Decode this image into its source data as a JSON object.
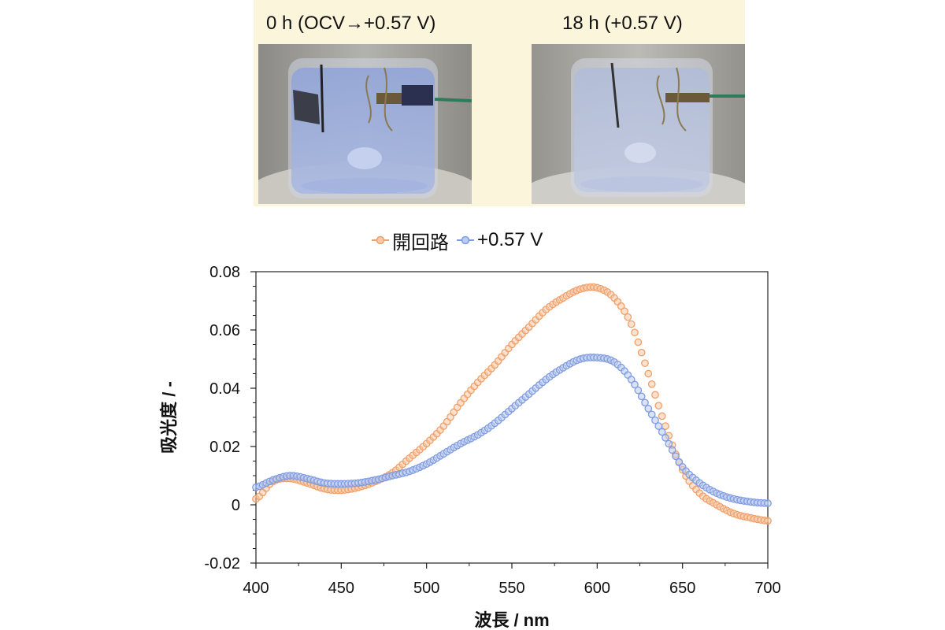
{
  "photos": {
    "left_label": "0 h (OCV→+0.57 V)",
    "right_label": "18 h (+0.57 V)"
  },
  "colors": {
    "orange": "#f0a06a",
    "blue": "#7f9ce0",
    "panel_bg": "#fbf5dc"
  },
  "chart_data": {
    "type": "line",
    "xlabel": "波長 / nm",
    "ylabel": "吸光度 / -",
    "xlim": [
      400,
      700
    ],
    "ylim": [
      -0.02,
      0.08
    ],
    "xticks": [
      "400",
      "450",
      "500",
      "550",
      "600",
      "650",
      "700"
    ],
    "yticks": [
      "-0.02",
      "0",
      "0.02",
      "0.04",
      "0.06",
      "0.08"
    ],
    "legend_position": "top",
    "grid": false,
    "series": [
      {
        "name": "開回路",
        "color": "#f0a06a",
        "x": [
          400,
          410,
          420,
          430,
          440,
          450,
          460,
          470,
          480,
          490,
          500,
          510,
          520,
          530,
          540,
          550,
          560,
          570,
          580,
          590,
          600,
          610,
          620,
          630,
          640,
          650,
          660,
          670,
          680,
          690,
          700
        ],
        "y": [
          0.002,
          0.008,
          0.009,
          0.0075,
          0.0055,
          0.005,
          0.006,
          0.008,
          0.011,
          0.016,
          0.021,
          0.027,
          0.035,
          0.042,
          0.048,
          0.055,
          0.061,
          0.067,
          0.071,
          0.074,
          0.0745,
          0.071,
          0.062,
          0.045,
          0.027,
          0.012,
          0.004,
          0.0,
          -0.003,
          -0.0045,
          -0.0055
        ]
      },
      {
        "name": "+0.57 V",
        "color": "#7f9ce0",
        "x": [
          400,
          410,
          420,
          430,
          440,
          450,
          460,
          470,
          480,
          490,
          500,
          510,
          520,
          530,
          540,
          550,
          560,
          570,
          580,
          590,
          600,
          610,
          620,
          630,
          640,
          650,
          660,
          670,
          680,
          690,
          700
        ],
        "y": [
          0.006,
          0.0085,
          0.01,
          0.009,
          0.0075,
          0.0072,
          0.0075,
          0.0085,
          0.01,
          0.0115,
          0.014,
          0.0175,
          0.021,
          0.024,
          0.028,
          0.033,
          0.038,
          0.043,
          0.047,
          0.05,
          0.0505,
          0.049,
          0.043,
          0.033,
          0.023,
          0.013,
          0.0075,
          0.004,
          0.002,
          0.001,
          0.0005
        ]
      }
    ]
  }
}
